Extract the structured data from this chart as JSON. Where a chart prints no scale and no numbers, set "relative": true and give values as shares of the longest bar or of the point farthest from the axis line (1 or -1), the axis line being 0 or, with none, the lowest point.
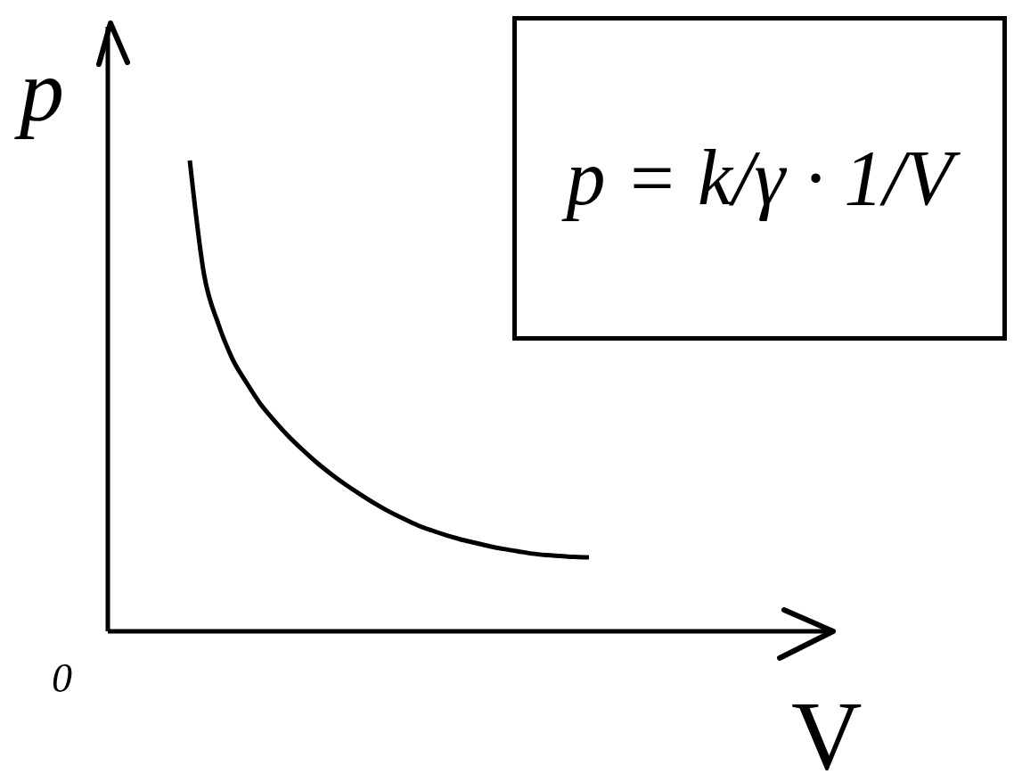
{
  "chart_data": {
    "type": "line",
    "relative": true,
    "xlabel": "V",
    "ylabel": "p",
    "annotations": [
      "0",
      "p = k/γ · 1/V"
    ],
    "categories": [
      null,
      null,
      null,
      null,
      null,
      null,
      null,
      null,
      null,
      null,
      null,
      null,
      null,
      null,
      null,
      null,
      null,
      null,
      null,
      null,
      null,
      null,
      null,
      null,
      null,
      null,
      null,
      null,
      null,
      null,
      null,
      null,
      null,
      null,
      null,
      null,
      null,
      null,
      null,
      null,
      null,
      null,
      null,
      null,
      null,
      null,
      null,
      null,
      null,
      null,
      null
    ],
    "values": [
      null,
      null,
      null,
      null,
      null,
      1,
      0.758,
      0.653,
      0.578,
      0.527,
      0.481,
      0.445,
      0.412,
      0.383,
      0.356,
      0.332,
      0.31,
      0.29,
      0.271,
      0.254,
      0.239,
      0.225,
      0.214,
      0.204,
      0.195,
      0.188,
      0.181,
      0.175,
      0.17,
      0.165,
      0.162,
      0.16,
      0.158,
      0.157,
      null,
      null,
      null,
      null,
      null,
      null,
      null,
      null,
      null,
      null,
      null,
      null,
      null,
      null,
      null,
      null,
      null
    ],
    "color": "#000000"
  }
}
